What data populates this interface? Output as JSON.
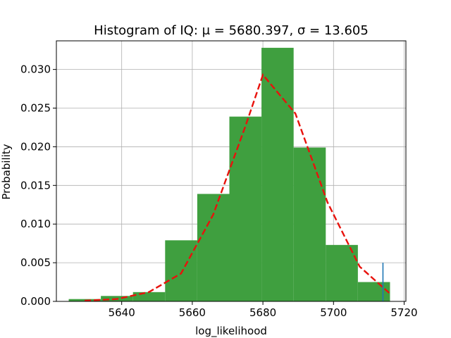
{
  "chart_data": {
    "type": "bar",
    "title": "Histogram of IQ: μ = 5680.397,  σ = 13.605",
    "xlabel": "log_likelihood",
    "ylabel": "Probability",
    "xlim": [
      5621.5,
      5720.5
    ],
    "ylim": [
      0,
      0.0337
    ],
    "xticks": [
      5640,
      5660,
      5680,
      5700,
      5720
    ],
    "yticks": [
      "0.000",
      "0.005",
      "0.010",
      "0.015",
      "0.020",
      "0.025",
      "0.030"
    ],
    "ytick_values": [
      0,
      0.005,
      0.01,
      0.015,
      0.02,
      0.025,
      0.03
    ],
    "grid": true,
    "bins": [
      {
        "x0": 5625.0,
        "x1": 5634.1,
        "value": 0.0003
      },
      {
        "x0": 5634.1,
        "x1": 5643.2,
        "value": 0.0007
      },
      {
        "x0": 5643.2,
        "x1": 5652.3,
        "value": 0.0012
      },
      {
        "x0": 5652.3,
        "x1": 5661.4,
        "value": 0.0079
      },
      {
        "x0": 5661.4,
        "x1": 5670.5,
        "value": 0.0139
      },
      {
        "x0": 5670.5,
        "x1": 5679.6,
        "value": 0.0239
      },
      {
        "x0": 5679.6,
        "x1": 5688.7,
        "value": 0.0328
      },
      {
        "x0": 5688.7,
        "x1": 5697.8,
        "value": 0.0199
      },
      {
        "x0": 5697.8,
        "x1": 5706.9,
        "value": 0.0073
      },
      {
        "x0": 5706.9,
        "x1": 5716.0,
        "value": 0.0025
      }
    ],
    "fit_line": {
      "x": [
        5629.5,
        5638.6,
        5647.7,
        5656.8,
        5665.9,
        5675.0,
        5680.0,
        5689.2,
        5698.3,
        5707.4,
        5716.0
      ],
      "y": [
        0.0001,
        0.0003,
        0.0012,
        0.0036,
        0.0112,
        0.0226,
        0.0293,
        0.0243,
        0.0128,
        0.0045,
        0.001
      ]
    },
    "marker": {
      "x": 5714.0,
      "y": 0.005
    },
    "colors": {
      "bars": "#3f9f3f",
      "fit_line": "#e8120c",
      "marker": "#1f77b4",
      "grid": "#b0b0b0",
      "axis": "#000000"
    }
  }
}
